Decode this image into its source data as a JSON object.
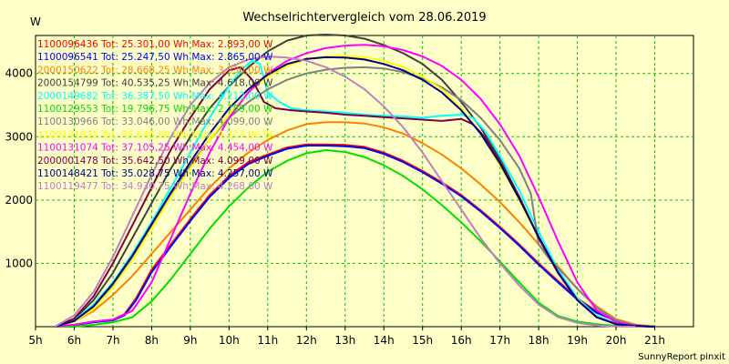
{
  "chart_data": {
    "type": "line",
    "title": "Wechselrichtervergleich vom 28.06.2019",
    "ylabel": "W",
    "xlabel": "",
    "footer": "SunnyReport pinxit",
    "xlim": [
      5,
      22
    ],
    "ylim": [
      0,
      4600
    ],
    "xticks": [
      5,
      6,
      7,
      8,
      9,
      10,
      11,
      12,
      13,
      14,
      15,
      16,
      17,
      18,
      19,
      20,
      21
    ],
    "xtick_labels": [
      "5h",
      "6h",
      "7h",
      "8h",
      "9h",
      "10h",
      "11h",
      "12h",
      "13h",
      "14h",
      "15h",
      "16h",
      "17h",
      "18h",
      "19h",
      "20h",
      "21h"
    ],
    "yticks": [
      1000,
      2000,
      3000,
      4000
    ],
    "ytick_labels": [
      "1000",
      "2000",
      "3000",
      "4000"
    ],
    "grid": true,
    "legend_position": "top-left",
    "series": [
      {
        "name": "1100096436",
        "legend": "1100096436 Tot: 25.301,00 Wh Max: 2.893,00 W",
        "color": "#ff0000",
        "x": [
          5.5,
          6,
          6.5,
          7,
          7.3,
          7.6,
          8,
          8.5,
          9,
          9.5,
          10,
          10.5,
          11,
          11.5,
          12,
          12.5,
          13,
          13.5,
          14,
          14.5,
          15,
          15.5,
          16,
          16.5,
          17,
          17.5,
          18,
          18.5,
          19,
          19.5,
          20,
          20.5,
          21
        ],
        "y": [
          0,
          30,
          80,
          110,
          200,
          450,
          900,
          1300,
          1700,
          2080,
          2380,
          2600,
          2720,
          2830,
          2880,
          2880,
          2870,
          2840,
          2750,
          2620,
          2460,
          2280,
          2080,
          1840,
          1580,
          1300,
          1000,
          720,
          450,
          240,
          100,
          30,
          0
        ]
      },
      {
        "name": "1100096541",
        "legend": "1100096541 Tot: 25.247,50 Wh Max: 2.865,00 W",
        "color": "#0000ff",
        "x": [
          5.5,
          6,
          6.5,
          7,
          7.3,
          7.6,
          8,
          8.5,
          9,
          9.5,
          10,
          10.5,
          11,
          11.5,
          12,
          12.5,
          13,
          13.5,
          14,
          14.5,
          15,
          15.5,
          16,
          16.5,
          17,
          17.5,
          18,
          18.5,
          19,
          19.5,
          20,
          20.5,
          21
        ],
        "y": [
          0,
          25,
          70,
          100,
          180,
          420,
          860,
          1270,
          1670,
          2050,
          2350,
          2570,
          2700,
          2810,
          2860,
          2860,
          2850,
          2820,
          2730,
          2600,
          2440,
          2260,
          2060,
          1820,
          1560,
          1280,
          980,
          700,
          430,
          220,
          90,
          25,
          0
        ]
      },
      {
        "name": "2000150622",
        "legend": "2000150622 Tot: 28.668,25 Wh Max: 3.230,00 W",
        "color": "#ff8000",
        "x": [
          5.5,
          6,
          6.5,
          7,
          7.5,
          8,
          8.5,
          9,
          9.5,
          10,
          10.5,
          11,
          11.5,
          12,
          12.5,
          13,
          13.5,
          14,
          14.5,
          15,
          15.5,
          16,
          16.5,
          17,
          17.5,
          18,
          18.5,
          19,
          19.5,
          20,
          20.5,
          21
        ],
        "y": [
          0,
          80,
          250,
          500,
          800,
          1150,
          1500,
          1850,
          2200,
          2500,
          2750,
          2950,
          3100,
          3200,
          3230,
          3230,
          3210,
          3150,
          3050,
          2900,
          2720,
          2500,
          2250,
          1970,
          1650,
          1300,
          950,
          600,
          320,
          120,
          35,
          0
        ]
      },
      {
        "name": "2000154799",
        "legend": "2000154799 Tot: 40.535,25 Wh Max: 4.618,00 W",
        "color": "#404040",
        "x": [
          5.5,
          6,
          6.5,
          7,
          7.5,
          8,
          8.5,
          9,
          9.5,
          10,
          10.5,
          11,
          11.5,
          12,
          12.5,
          13,
          13.5,
          14,
          14.5,
          15,
          15.5,
          16,
          16.5,
          17,
          17.5,
          18,
          18.5,
          19,
          19.5,
          20,
          20.5,
          21
        ],
        "y": [
          0,
          120,
          420,
          850,
          1400,
          1950,
          2500,
          3000,
          3450,
          3800,
          4100,
          4350,
          4520,
          4600,
          4615,
          4600,
          4550,
          4450,
          4320,
          4150,
          3900,
          3550,
          3150,
          2650,
          2050,
          1400,
          850,
          420,
          150,
          40,
          10,
          0
        ]
      },
      {
        "name": "2000149682",
        "legend": "2000149682 Tot: 36.387,50 Wh Max: 4.212,00 W",
        "color": "#00ffff",
        "x": [
          5.5,
          6,
          6.5,
          7,
          7.5,
          8,
          8.5,
          9,
          9.5,
          10,
          10.3,
          10.6,
          10.8,
          11,
          11.3,
          11.6,
          12,
          12.5,
          13,
          13.5,
          14,
          14.5,
          15,
          15.5,
          16,
          16.3,
          16.6,
          17,
          17.5,
          18,
          18.5,
          19,
          19.5,
          20,
          20.5,
          21
        ],
        "y": [
          0,
          100,
          350,
          700,
          1150,
          1650,
          2200,
          2750,
          3300,
          3800,
          4050,
          4200,
          4150,
          3700,
          3550,
          3450,
          3420,
          3400,
          3380,
          3350,
          3330,
          3320,
          3300,
          3330,
          3350,
          3300,
          3100,
          2700,
          2150,
          1500,
          900,
          450,
          170,
          50,
          10,
          0
        ]
      },
      {
        "name": "1100129553",
        "legend": "1100129553 Tot: 19.796,75 Wh Max: 2.789,00 W",
        "color": "#00e000",
        "x": [
          5.5,
          6,
          6.5,
          7,
          7.5,
          8,
          8.5,
          9,
          9.5,
          10,
          10.5,
          11,
          11.5,
          12,
          12.5,
          13,
          13.5,
          14,
          14.5,
          15,
          15.5,
          16,
          16.5,
          17,
          17.5,
          18,
          18.5,
          19,
          19.5,
          20,
          20.5
        ],
        "y": [
          0,
          0,
          30,
          70,
          150,
          400,
          750,
          1150,
          1550,
          1900,
          2200,
          2450,
          2620,
          2740,
          2789,
          2760,
          2680,
          2550,
          2380,
          2170,
          1920,
          1650,
          1350,
          1030,
          700,
          380,
          170,
          80,
          40,
          15,
          0
        ]
      },
      {
        "name": "1100130966",
        "legend": "1100130966 Tot: 33.046,00 Wh Max: 4.099,00 W",
        "color": "#808080",
        "x": [
          5.5,
          6,
          6.5,
          7,
          7.5,
          8,
          8.5,
          9,
          9.5,
          10,
          10.5,
          11,
          11.5,
          12,
          12.5,
          13,
          13.5,
          14,
          14.5,
          15,
          15.5,
          16,
          16.5,
          17,
          17.5,
          17.8,
          18,
          18.3,
          18.7,
          19,
          19.5,
          20,
          20.5,
          21
        ],
        "y": [
          0,
          90,
          300,
          650,
          1100,
          1600,
          2100,
          2550,
          2950,
          3300,
          3550,
          3750,
          3900,
          4000,
          4060,
          4090,
          4099,
          4080,
          4020,
          3920,
          3780,
          3580,
          3300,
          2950,
          2500,
          2100,
          1300,
          1050,
          800,
          600,
          300,
          100,
          25,
          0
        ]
      },
      {
        "name": "1100131025",
        "legend": "1100131025 Tot: 35.648,00 Wh Max: 4.277,00 W",
        "color": "#ffff00",
        "x": [
          5.5,
          6,
          6.5,
          7,
          7.5,
          8,
          8.5,
          9,
          9.5,
          10,
          10.5,
          11,
          11.5,
          12,
          12.5,
          13,
          13.5,
          14,
          14.5,
          15,
          15.5,
          16,
          16.5,
          17,
          17.5,
          18,
          18.5,
          19,
          19.5,
          20,
          20.5,
          21
        ],
        "y": [
          0,
          80,
          280,
          620,
          1050,
          1550,
          2050,
          2500,
          2950,
          3350,
          3700,
          3950,
          4120,
          4220,
          4270,
          4277,
          4260,
          4200,
          4100,
          3950,
          3750,
          3450,
          3050,
          2550,
          2000,
          1400,
          850,
          420,
          150,
          40,
          10,
          0
        ]
      },
      {
        "name": "1100131074",
        "legend": "1100131074 Tot: 37.105,25 Wh Max: 4.454,00 W",
        "color": "#ff00ff",
        "x": [
          5.5,
          6,
          6.5,
          7,
          7.5,
          8,
          8.5,
          9,
          9.5,
          10,
          10.5,
          11,
          11.5,
          12,
          12.5,
          13,
          13.5,
          14,
          14.5,
          15,
          15.5,
          16,
          16.5,
          17,
          17.5,
          18,
          18.5,
          19,
          19.5,
          20,
          20.5,
          21
        ],
        "y": [
          0,
          30,
          80,
          110,
          250,
          700,
          1400,
          2100,
          2750,
          3300,
          3700,
          4000,
          4200,
          4320,
          4400,
          4440,
          4454,
          4430,
          4370,
          4270,
          4120,
          3900,
          3600,
          3200,
          2700,
          2050,
          1350,
          700,
          260,
          70,
          15,
          0
        ]
      },
      {
        "name": "2000001478",
        "legend": "2000001478 Tot: 35.642,50 Wh Max: 4.099,00 W",
        "color": "#800040",
        "x": [
          5.5,
          6,
          6.5,
          7,
          7.5,
          8,
          8.5,
          9,
          9.5,
          10,
          10.3,
          10.6,
          10.9,
          11.2,
          11.6,
          12,
          12.5,
          13,
          13.5,
          14,
          14.5,
          15,
          15.5,
          16,
          16.3,
          16.6,
          17,
          17.5,
          18,
          18.5,
          19,
          19.5,
          20,
          20.5,
          21
        ],
        "y": [
          0,
          130,
          480,
          1000,
          1600,
          2200,
          2800,
          3300,
          3750,
          4050,
          4099,
          3900,
          3550,
          3450,
          3420,
          3400,
          3380,
          3350,
          3330,
          3310,
          3290,
          3270,
          3250,
          3280,
          3200,
          3000,
          2600,
          2050,
          1400,
          850,
          420,
          150,
          40,
          10,
          0
        ]
      },
      {
        "name": "1100148421",
        "legend": "1100148421 Tot: 35.028,75 Wh Max: 4.257,00 W",
        "color": "#000080",
        "x": [
          5.5,
          6,
          6.5,
          7,
          7.5,
          8,
          8.5,
          9,
          9.5,
          10,
          10.5,
          11,
          11.5,
          12,
          12.5,
          13,
          13.5,
          14,
          14.5,
          15,
          15.5,
          16,
          16.5,
          17,
          17.5,
          18,
          18.5,
          19,
          19.5,
          20,
          20.5,
          21
        ],
        "y": [
          0,
          90,
          320,
          680,
          1120,
          1620,
          2120,
          2600,
          3050,
          3450,
          3750,
          3980,
          4150,
          4230,
          4257,
          4250,
          4220,
          4150,
          4050,
          3900,
          3700,
          3420,
          3050,
          2580,
          2020,
          1420,
          860,
          420,
          150,
          40,
          10,
          0
        ]
      },
      {
        "name": "1100119477",
        "legend": "1100119477 Tot: 34.930,75 Wh Max: 4.268,00 W",
        "color": "#c080c0",
        "x": [
          5.5,
          6,
          6.5,
          7,
          7.5,
          8,
          8.5,
          9,
          9.5,
          10,
          10.5,
          11,
          11.5,
          12,
          12.5,
          13,
          13.5,
          14,
          14.5,
          15,
          15.5,
          16,
          16.5,
          17,
          17.5,
          18,
          18.5,
          19,
          19.5,
          20,
          20.5
        ],
        "y": [
          0,
          180,
          550,
          1100,
          1750,
          2400,
          3000,
          3500,
          3850,
          4100,
          4220,
          4268,
          4250,
          4200,
          4100,
          3950,
          3750,
          3480,
          3150,
          2750,
          2300,
          1850,
          1400,
          1000,
          650,
          350,
          150,
          60,
          20,
          5,
          0
        ]
      }
    ]
  }
}
